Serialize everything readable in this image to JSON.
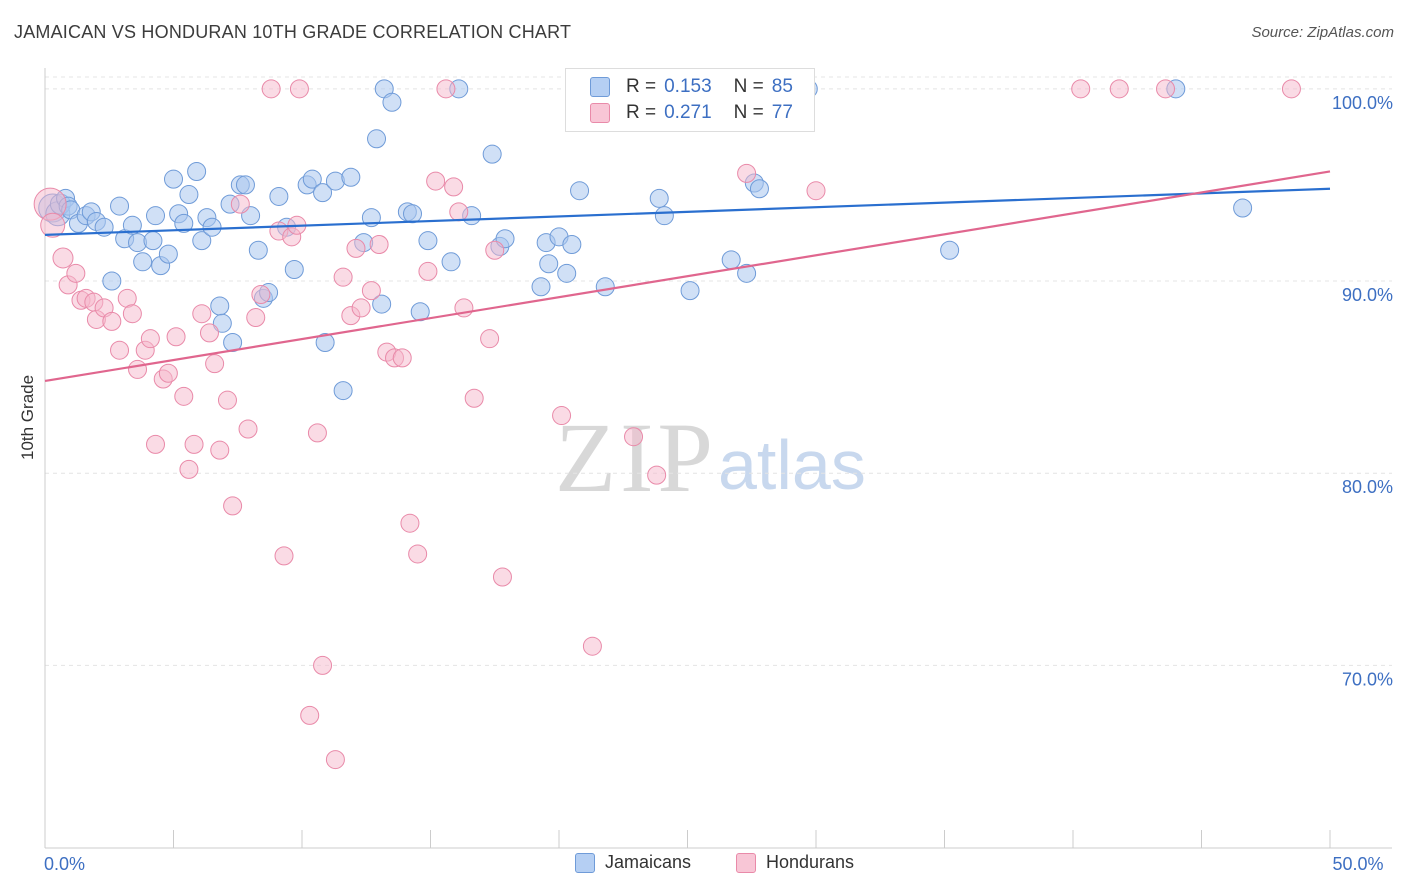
{
  "header": {
    "title": "JAMAICAN VS HONDURAN 10TH GRADE CORRELATION CHART",
    "source": "Source: ZipAtlas.com"
  },
  "watermark": {
    "zip": "ZIP",
    "atlas": "atlas"
  },
  "legend": {
    "rows": [
      {
        "r_label": "R =",
        "r_value": "0.153",
        "n_label": "N =",
        "n_value": "85"
      },
      {
        "r_label": "R =",
        "r_value": "0.271",
        "n_label": "N =",
        "n_value": "77"
      }
    ]
  },
  "bottom_legend": {
    "jamaicans": "Jamaicans",
    "hondurans": "Hondurans"
  },
  "colors": {
    "jamaican_fill": "#a9c6ee",
    "jamaican_stroke": "#6f9bd8",
    "jamaican_line": "#2a6fcf",
    "honduran_fill": "#f6b8cc",
    "honduran_stroke": "#e98aa9",
    "honduran_line": "#e0668e",
    "axis_text": "#3d6fc2"
  },
  "chart_data": {
    "type": "scatter",
    "title": "JAMAICAN VS HONDURAN 10TH GRADE CORRELATION CHART",
    "xlabel": "",
    "ylabel": "10th Grade",
    "xlim": [
      0,
      50
    ],
    "ylim": [
      60.5,
      101.5
    ],
    "x_tick_labels": [
      {
        "value": 0,
        "label": "0.0%"
      },
      {
        "value": 50,
        "label": "50.0%"
      }
    ],
    "y_tick_labels": [
      {
        "value": 100,
        "label": "100.0%"
      },
      {
        "value": 90,
        "label": "90.0%"
      },
      {
        "value": 80,
        "label": "80.0%"
      },
      {
        "value": 70,
        "label": "70.0%"
      }
    ],
    "x_minor_ticks": [
      0,
      5,
      10,
      15,
      20,
      25,
      30,
      35,
      40,
      45,
      50
    ],
    "grid": true,
    "legend_position": "top-center",
    "series": [
      {
        "name": "Jamaicans",
        "r": 0.153,
        "n": 85,
        "trend": {
          "x": [
            0,
            50
          ],
          "y": [
            92.4,
            94.8
          ]
        },
        "points": [
          [
            0.3,
            93.8,
            14
          ],
          [
            0.5,
            93.5,
            12
          ],
          [
            0.6,
            94.0,
            10
          ],
          [
            0.8,
            94.3,
            9
          ],
          [
            0.9,
            93.9,
            9
          ],
          [
            1.0,
            93.7,
            9
          ],
          [
            1.3,
            93.0,
            9
          ],
          [
            1.6,
            93.4,
            9
          ],
          [
            1.8,
            93.6,
            9
          ],
          [
            2.0,
            93.1,
            9
          ],
          [
            2.3,
            92.8,
            9
          ],
          [
            2.6,
            90.0,
            9
          ],
          [
            2.9,
            93.9,
            9
          ],
          [
            3.1,
            92.2,
            9
          ],
          [
            3.4,
            92.9,
            9
          ],
          [
            3.6,
            92.0,
            9
          ],
          [
            3.8,
            91.0,
            9
          ],
          [
            4.2,
            92.1,
            9
          ],
          [
            4.3,
            93.4,
            9
          ],
          [
            4.5,
            90.8,
            9
          ],
          [
            4.8,
            91.4,
            9
          ],
          [
            5.0,
            95.3,
            9
          ],
          [
            5.2,
            93.5,
            9
          ],
          [
            5.4,
            93.0,
            9
          ],
          [
            5.6,
            94.5,
            9
          ],
          [
            5.9,
            95.7,
            9
          ],
          [
            6.1,
            92.1,
            9
          ],
          [
            6.3,
            93.3,
            9
          ],
          [
            6.5,
            92.8,
            9
          ],
          [
            6.8,
            88.7,
            9
          ],
          [
            6.9,
            87.8,
            9
          ],
          [
            7.2,
            94.0,
            9
          ],
          [
            7.3,
            86.8,
            9
          ],
          [
            7.6,
            95.0,
            9
          ],
          [
            7.8,
            95.0,
            9
          ],
          [
            8.0,
            93.4,
            9
          ],
          [
            8.3,
            91.6,
            9
          ],
          [
            8.5,
            89.1,
            9
          ],
          [
            8.7,
            89.4,
            9
          ],
          [
            9.1,
            94.4,
            9
          ],
          [
            9.4,
            92.8,
            9
          ],
          [
            9.7,
            90.6,
            9
          ],
          [
            10.2,
            95.0,
            9
          ],
          [
            10.4,
            95.3,
            9
          ],
          [
            10.8,
            94.6,
            9
          ],
          [
            10.9,
            86.8,
            9
          ],
          [
            11.3,
            95.2,
            9
          ],
          [
            11.6,
            84.3,
            9
          ],
          [
            11.9,
            95.4,
            9
          ],
          [
            12.4,
            92.0,
            9
          ],
          [
            12.7,
            93.3,
            9
          ],
          [
            12.9,
            97.4,
            9
          ],
          [
            13.1,
            88.8,
            9
          ],
          [
            13.2,
            100.0,
            9
          ],
          [
            13.5,
            99.3,
            9
          ],
          [
            14.1,
            93.6,
            9
          ],
          [
            14.3,
            93.5,
            9
          ],
          [
            14.6,
            88.4,
            9
          ],
          [
            14.9,
            92.1,
            9
          ],
          [
            15.8,
            91.0,
            9
          ],
          [
            16.1,
            100.0,
            9
          ],
          [
            16.6,
            93.4,
            9
          ],
          [
            17.4,
            96.6,
            9
          ],
          [
            17.7,
            91.8,
            9
          ],
          [
            17.9,
            92.2,
            9
          ],
          [
            19.3,
            89.7,
            9
          ],
          [
            19.5,
            92.0,
            9
          ],
          [
            19.6,
            90.9,
            9
          ],
          [
            20.0,
            92.3,
            9
          ],
          [
            20.3,
            90.4,
            9
          ],
          [
            20.5,
            91.9,
            9
          ],
          [
            20.8,
            94.7,
            9
          ],
          [
            21.8,
            89.7,
            9
          ],
          [
            22.8,
            100.0,
            9
          ],
          [
            23.9,
            94.3,
            9
          ],
          [
            24.1,
            93.4,
            9
          ],
          [
            25.1,
            89.5,
            9
          ],
          [
            25.9,
            100.0,
            9
          ],
          [
            26.7,
            91.1,
            9
          ],
          [
            27.3,
            90.4,
            9
          ],
          [
            27.6,
            95.1,
            9
          ],
          [
            27.8,
            94.8,
            9
          ],
          [
            28.6,
            100.0,
            9
          ],
          [
            29.7,
            100.0,
            9
          ],
          [
            35.2,
            91.6,
            9
          ],
          [
            44.0,
            100.0,
            9
          ],
          [
            46.6,
            93.8,
            9
          ]
        ]
      },
      {
        "name": "Hondurans",
        "r": 0.271,
        "n": 77,
        "trend": {
          "x": [
            0,
            50
          ],
          "y": [
            84.8,
            95.7
          ]
        },
        "points": [
          [
            0.2,
            94.0,
            16
          ],
          [
            0.3,
            92.9,
            12
          ],
          [
            0.7,
            91.2,
            10
          ],
          [
            0.9,
            89.8,
            9
          ],
          [
            1.2,
            90.4,
            9
          ],
          [
            1.4,
            89.0,
            9
          ],
          [
            1.6,
            89.1,
            9
          ],
          [
            1.9,
            88.9,
            9
          ],
          [
            2.0,
            88.0,
            9
          ],
          [
            2.3,
            88.6,
            9
          ],
          [
            2.6,
            87.9,
            9
          ],
          [
            2.9,
            86.4,
            9
          ],
          [
            3.2,
            89.1,
            9
          ],
          [
            3.4,
            88.3,
            9
          ],
          [
            3.6,
            85.4,
            9
          ],
          [
            3.9,
            86.4,
            9
          ],
          [
            4.1,
            87.0,
            9
          ],
          [
            4.3,
            81.5,
            9
          ],
          [
            4.6,
            84.9,
            9
          ],
          [
            4.8,
            85.2,
            9
          ],
          [
            5.1,
            87.1,
            9
          ],
          [
            5.4,
            84.0,
            9
          ],
          [
            5.6,
            80.2,
            9
          ],
          [
            5.8,
            81.5,
            9
          ],
          [
            6.1,
            88.3,
            9
          ],
          [
            6.4,
            87.3,
            9
          ],
          [
            6.6,
            85.7,
            9
          ],
          [
            6.8,
            81.2,
            9
          ],
          [
            7.1,
            83.8,
            9
          ],
          [
            7.3,
            78.3,
            9
          ],
          [
            7.6,
            94.0,
            9
          ],
          [
            7.9,
            82.3,
            9
          ],
          [
            8.2,
            88.1,
            9
          ],
          [
            8.4,
            89.3,
            9
          ],
          [
            8.8,
            100.0,
            9
          ],
          [
            9.1,
            92.6,
            9
          ],
          [
            9.3,
            75.7,
            9
          ],
          [
            9.6,
            92.3,
            9
          ],
          [
            9.8,
            92.9,
            9
          ],
          [
            9.9,
            100.0,
            9
          ],
          [
            10.3,
            67.4,
            9
          ],
          [
            10.6,
            82.1,
            9
          ],
          [
            10.8,
            70.0,
            9
          ],
          [
            11.3,
            65.1,
            9
          ],
          [
            11.6,
            90.2,
            9
          ],
          [
            11.9,
            88.2,
            9
          ],
          [
            12.1,
            91.7,
            9
          ],
          [
            12.3,
            88.6,
            9
          ],
          [
            12.7,
            89.5,
            9
          ],
          [
            13.0,
            91.9,
            9
          ],
          [
            13.3,
            86.3,
            9
          ],
          [
            13.6,
            86.0,
            9
          ],
          [
            13.9,
            86.0,
            9
          ],
          [
            14.2,
            77.4,
            9
          ],
          [
            14.5,
            75.8,
            9
          ],
          [
            14.9,
            90.5,
            9
          ],
          [
            15.2,
            95.2,
            9
          ],
          [
            15.6,
            100.0,
            9
          ],
          [
            15.9,
            94.9,
            9
          ],
          [
            16.1,
            93.6,
            9
          ],
          [
            16.3,
            88.6,
            9
          ],
          [
            16.7,
            83.9,
            9
          ],
          [
            17.3,
            87.0,
            9
          ],
          [
            17.5,
            91.6,
            9
          ],
          [
            17.8,
            74.6,
            9
          ],
          [
            20.1,
            83.0,
            9
          ],
          [
            20.8,
            100.0,
            9
          ],
          [
            21.3,
            71.0,
            9
          ],
          [
            22.9,
            81.9,
            9
          ],
          [
            23.8,
            79.9,
            9
          ],
          [
            27.3,
            95.6,
            9
          ],
          [
            28.6,
            100.0,
            9
          ],
          [
            30.0,
            94.7,
            9
          ],
          [
            40.3,
            100.0,
            9
          ],
          [
            41.8,
            100.0,
            9
          ],
          [
            43.6,
            100.0,
            9
          ],
          [
            48.5,
            100.0,
            9
          ]
        ]
      }
    ]
  }
}
